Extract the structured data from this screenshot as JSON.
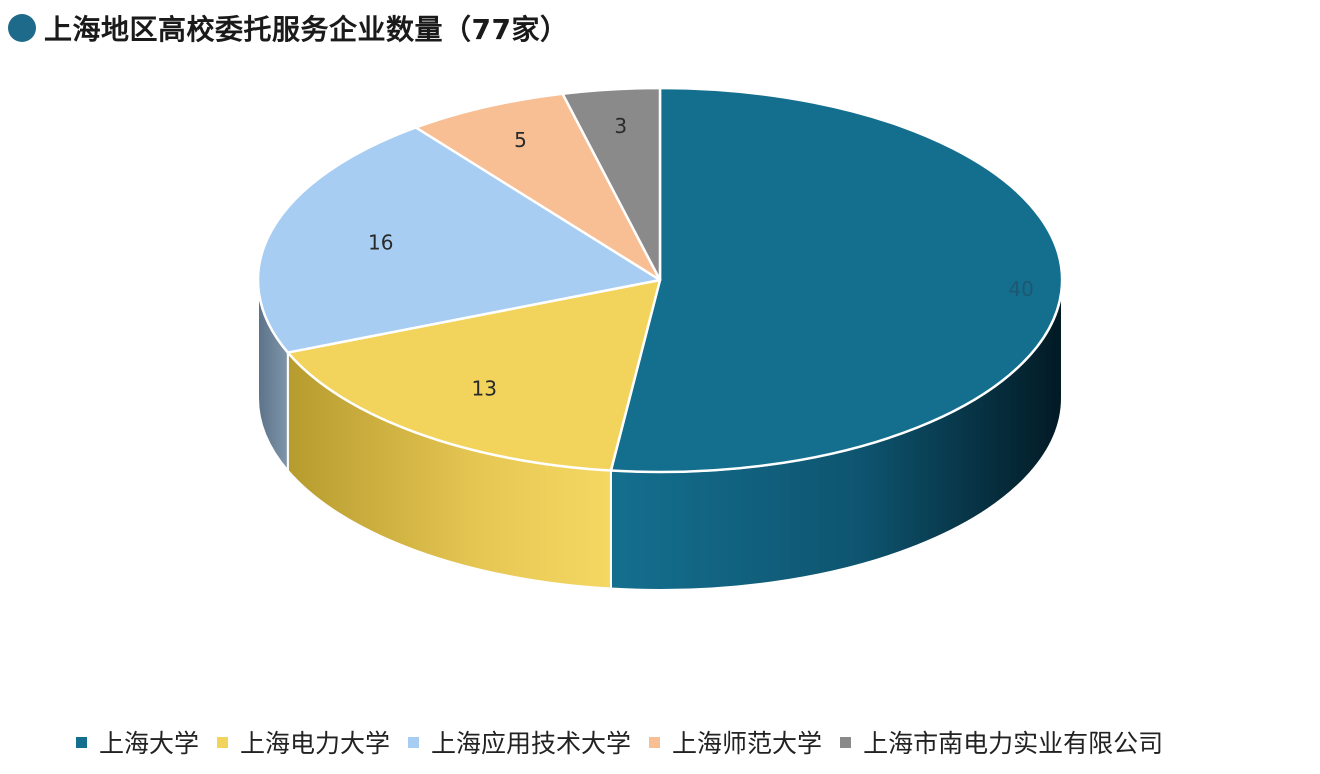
{
  "title": "上海地区高校委托服务企业数量（77家）",
  "accent_color": "#1e6a8a",
  "chart_data": {
    "type": "pie",
    "style": "3d",
    "title": "上海地区高校委托服务企业数量（77家）",
    "legend_position": "bottom",
    "slices": [
      {
        "name": "上海大学",
        "value": 40,
        "color": "#146f8f"
      },
      {
        "name": "上海电力大学",
        "value": 13,
        "color": "#f2d35b"
      },
      {
        "name": "上海应用技术大学",
        "value": 16,
        "color": "#a8cdf3"
      },
      {
        "name": "上海师范大学",
        "value": 5,
        "color": "#f8be94"
      },
      {
        "name": "上海市南电力实业有限公司",
        "value": 3,
        "color": "#8a8a8a"
      }
    ]
  }
}
